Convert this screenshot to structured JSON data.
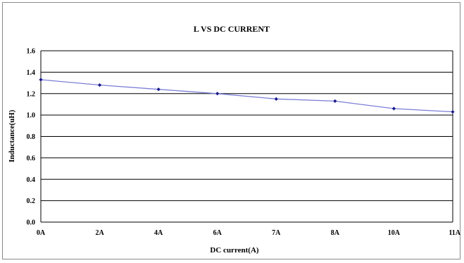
{
  "chart_data": {
    "type": "line",
    "title": "L VS DC CURRENT",
    "xlabel": "DC current(A)",
    "ylabel": "Inductance(uH)",
    "categories": [
      "0A",
      "2A",
      "4A",
      "6A",
      "7A",
      "8A",
      "10A",
      "11A"
    ],
    "series": [
      {
        "values": [
          1.33,
          1.28,
          1.24,
          1.2,
          1.15,
          1.13,
          1.06,
          1.03
        ]
      }
    ],
    "ylim": [
      0,
      1.6
    ],
    "yticks": [
      "0.0",
      "0.2",
      "0.4",
      "0.6",
      "0.8",
      "1.0",
      "1.2",
      "1.4",
      "1.6"
    ],
    "grid": true,
    "colors": {
      "line": "#7b7fd6",
      "marker": "#1a1a8c",
      "grid": "#000000"
    }
  }
}
